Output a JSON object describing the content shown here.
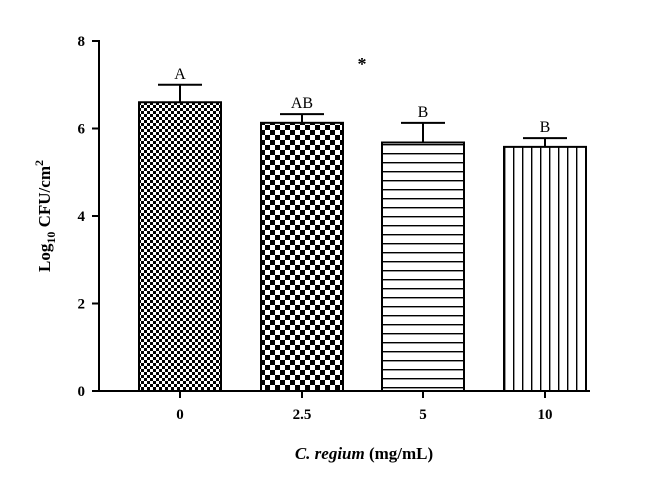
{
  "chart_data": {
    "type": "bar",
    "categories": [
      "0",
      "2.5",
      "5",
      "10"
    ],
    "values": [
      6.6,
      6.13,
      5.68,
      5.58
    ],
    "errors": [
      0.4,
      0.2,
      0.45,
      0.2
    ],
    "letters": [
      "A",
      "AB",
      "B",
      "B"
    ],
    "patterns": [
      "fine-checker",
      "coarse-checker",
      "horizontal-lines",
      "vertical-lines"
    ],
    "annotation": "*",
    "title": "",
    "xlabel": {
      "italic": "C. regium",
      "rest": " (mg/mL)"
    },
    "ylabel": {
      "pre": "Log",
      "sub": "10",
      "mid": " CFU/cm",
      "sup": "2"
    },
    "ylim": [
      0,
      8
    ],
    "yticks": [
      "0",
      "2",
      "4",
      "6",
      "8"
    ],
    "grid": false,
    "legend": "none"
  }
}
